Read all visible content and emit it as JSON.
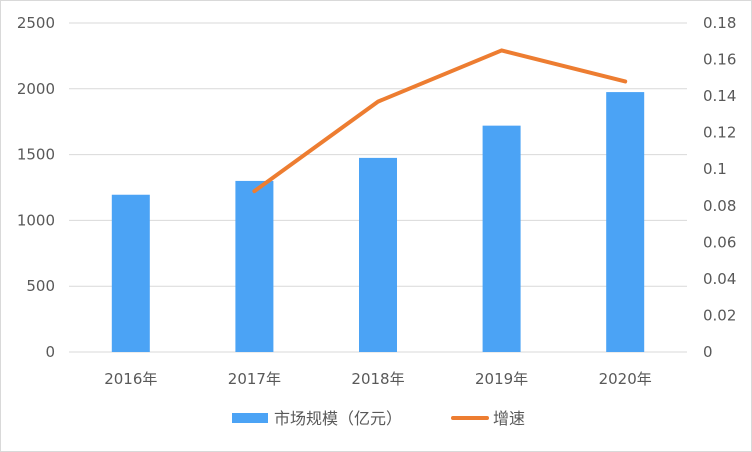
{
  "chart_data": {
    "type": "bar",
    "categories": [
      "2016年",
      "2017年",
      "2018年",
      "2019年",
      "2020年"
    ],
    "series": [
      {
        "name": "市场规模（亿元）",
        "type": "bar",
        "axis": "left",
        "color": "#4BA3F5",
        "values": [
          1195,
          1300,
          1475,
          1720,
          1975
        ]
      },
      {
        "name": "增速",
        "type": "line",
        "axis": "right",
        "color": "#ED7D31",
        "values": [
          null,
          0.088,
          0.137,
          0.165,
          0.148
        ]
      }
    ],
    "title": "",
    "xlabel": "",
    "ylabel": "",
    "ylim": [
      0,
      2500
    ],
    "y_ticks": [
      "0",
      "500",
      "1000",
      "1500",
      "2000",
      "2500"
    ],
    "y2lim": [
      0,
      0.18
    ],
    "y2_ticks": [
      "0",
      "0.02",
      "0.04",
      "0.06",
      "0.08",
      "0.1",
      "0.12",
      "0.14",
      "0.16",
      "0.18"
    ],
    "grid": true,
    "legend": "bottom"
  }
}
